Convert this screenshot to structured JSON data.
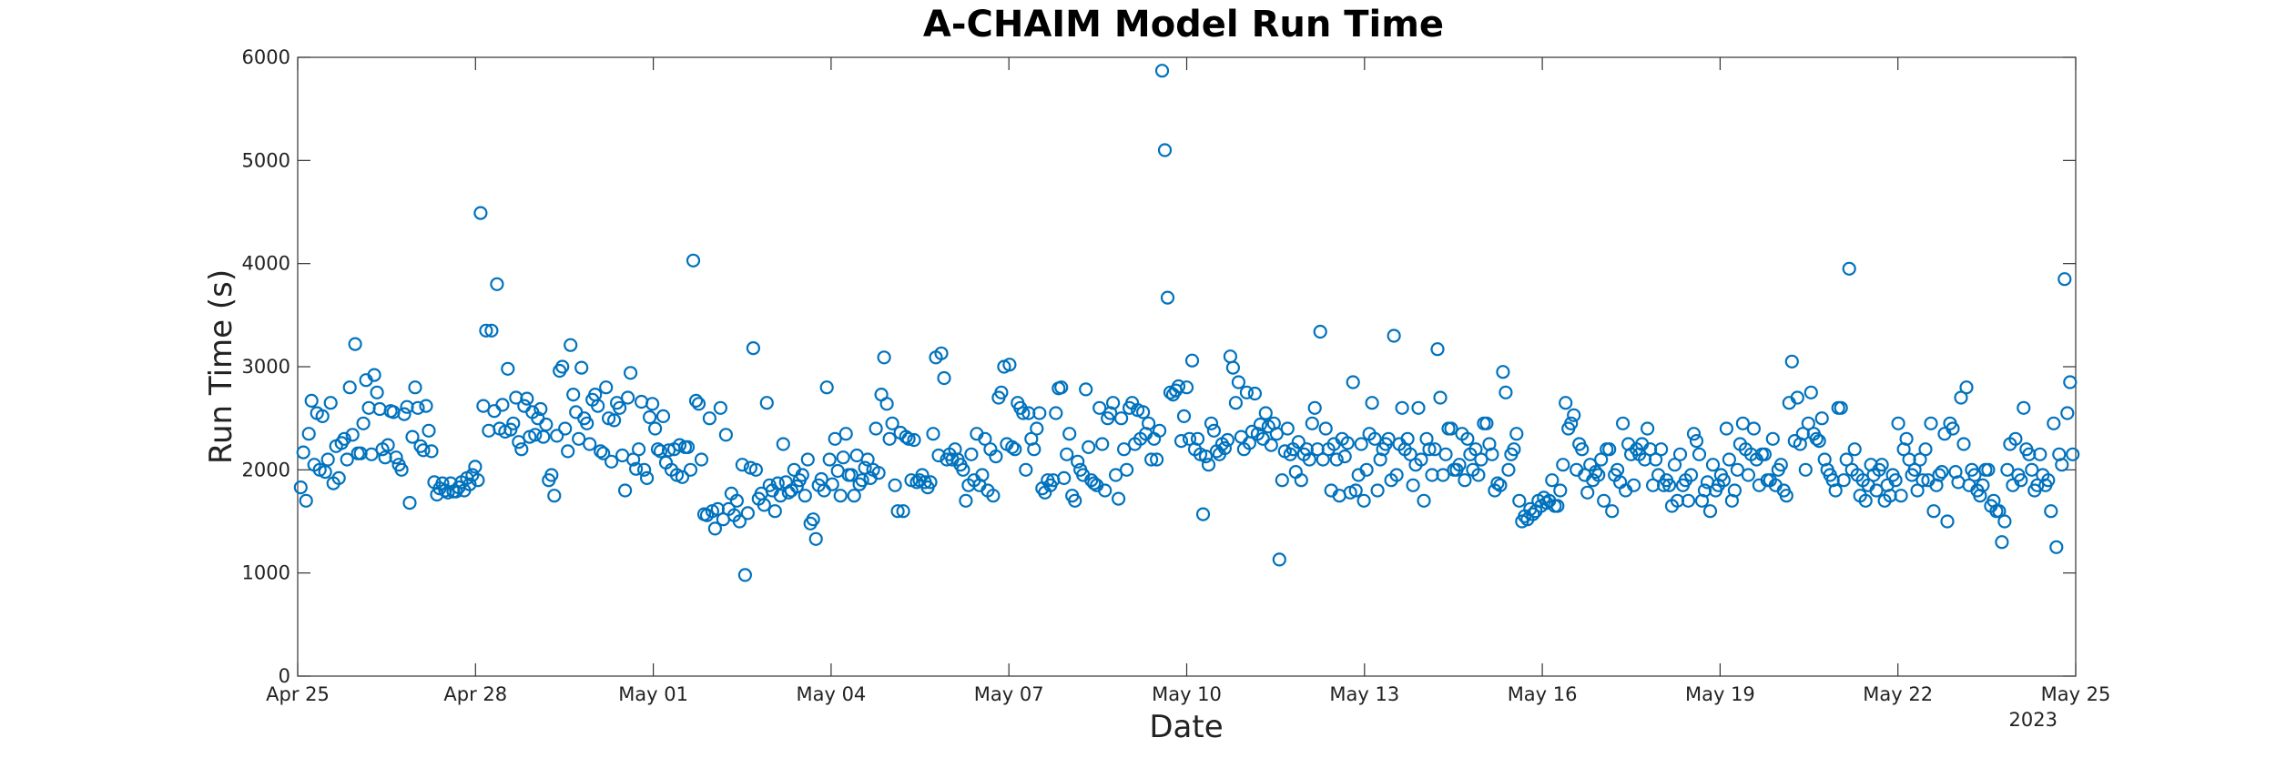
{
  "chart_data": {
    "type": "scatter",
    "title": "A-CHAIM Model Run Time",
    "xlabel": "Date",
    "ylabel": "Run Time (s)",
    "x_axis_year": "2023",
    "x_range_days": [
      0,
      30
    ],
    "x_ticks": [
      {
        "day": 0,
        "label": "Apr 25"
      },
      {
        "day": 3,
        "label": "Apr 28"
      },
      {
        "day": 6,
        "label": "May 01"
      },
      {
        "day": 9,
        "label": "May 04"
      },
      {
        "day": 12,
        "label": "May 07"
      },
      {
        "day": 15,
        "label": "May 10"
      },
      {
        "day": 18,
        "label": "May 13"
      },
      {
        "day": 21,
        "label": "May 16"
      },
      {
        "day": 24,
        "label": "May 19"
      },
      {
        "day": 27,
        "label": "May 22"
      },
      {
        "day": 30,
        "label": "May 25"
      }
    ],
    "ylim": [
      0,
      6000
    ],
    "y_ticks": [
      0,
      1000,
      2000,
      3000,
      4000,
      5000,
      6000
    ],
    "grid": false,
    "marker": "open-circle",
    "marker_color": "#0072BD",
    "series": [
      {
        "values": [
          1830,
          2170,
          1700,
          2350,
          2670,
          2050,
          2550,
          2000,
          2520,
          1980,
          2100,
          2650,
          1870,
          2230,
          1920,
          2260,
          2300,
          2100,
          2800,
          2340,
          3220,
          2160,
          2160,
          2450,
          2870,
          2600,
          2150,
          2920,
          2750,
          2590,
          2200,
          2120,
          2240,
          2570,
          2560,
          2120,
          2050,
          2000,
          2540,
          2610,
          1680,
          2320,
          2800,
          2600,
          2230,
          2190,
          2620,
          2380,
          2180,
          1880,
          1760,
          1820,
          1870,
          1800,
          1780,
          1870,
          1790,
          1790,
          1830,
          1880,
          1800,
          1920,
          1860,
          1950,
          2030,
          1900,
          4490,
          2620,
          3350,
          2380,
          3350,
          2570,
          3800,
          2400,
          2630,
          2370,
          2980,
          2390,
          2450,
          2700,
          2270,
          2200,
          2620,
          2690,
          2320,
          2560,
          2340,
          2500,
          2590,
          2320,
          2440,
          1900,
          1950,
          1750,
          2330,
          2960,
          3000,
          2400,
          2180,
          3210,
          2730,
          2560,
          2300,
          2990,
          2500,
          2450,
          2250,
          2680,
          2730,
          2620,
          2180,
          2160,
          2800,
          2500,
          2080,
          2480,
          2650,
          2600,
          2140,
          1800,
          2700,
          2940,
          2100,
          2010,
          2200,
          2660,
          2000,
          1920,
          2510,
          2640,
          2400,
          2200,
          2180,
          2520,
          2070,
          2190,
          2000,
          2200,
          1950,
          2240,
          1930,
          2220,
          2220,
          2000,
          4030,
          2670,
          2640,
          2100,
          1570,
          1560,
          2500,
          1600,
          1430,
          1620,
          2600,
          1520,
          2340,
          1620,
          1770,
          1560,
          1700,
          1500,
          2050,
          980,
          1580,
          2020,
          3180,
          2000,
          1720,
          1770,
          1660,
          2650,
          1850,
          1800,
          1600,
          1870,
          1750,
          2250,
          1880,
          1780,
          1800,
          2000,
          1840,
          1900,
          1950,
          1750,
          2100,
          1480,
          1520,
          1330,
          1850,
          1910,
          1800,
          2800,
          2100,
          1860,
          2300,
          1990,
          1750,
          2120,
          2350,
          1950,
          1950,
          1750,
          2140,
          1860,
          1900,
          2020,
          2100,
          1920,
          2000,
          2400,
          1970,
          2730,
          3090,
          2640,
          2300,
          2450,
          1850,
          1600,
          2360,
          1600,
          2320,
          2300,
          1900,
          2290,
          1880,
          1900,
          1950,
          1880,
          1830,
          1880,
          2350,
          3090,
          2140,
          3130,
          2890,
          2100,
          2150,
          2100,
          2200,
          2100,
          2050,
          2000,
          1700,
          1850,
          2150,
          1900,
          2350,
          1850,
          1950,
          2300,
          1800,
          2200,
          1750,
          2130,
          2700,
          2750,
          3000,
          2250,
          3020,
          2220,
          2200,
          2650,
          2600,
          2550,
          2000,
          2550,
          2300,
          2200,
          2400,
          2550,
          1820,
          1780,
          1900,
          1850,
          1900,
          2550,
          2790,
          2800,
          1920,
          2150,
          2350,
          1750,
          1700,
          2080,
          2000,
          1950,
          2780,
          2220,
          1900,
          1870,
          1850,
          2600,
          2250,
          1800,
          2500,
          2550,
          2650,
          1950,
          1720,
          2500,
          2200,
          2000,
          2600,
          2650,
          2250,
          2580,
          2300,
          2560,
          2350,
          2450,
          2100,
          2300,
          2100,
          2380,
          5870,
          5100,
          3670,
          2750,
          2730,
          2770,
          2810,
          2280,
          2520,
          2800,
          2300,
          3060,
          2200,
          2300,
          2150,
          1570,
          2130,
          2050,
          2450,
          2380,
          2180,
          2150,
          2250,
          2210,
          2290,
          3100,
          2990,
          2650,
          2850,
          2320,
          2200,
          2750,
          2260,
          2370,
          2740,
          2350,
          2440,
          2300,
          2550,
          2420,
          2240,
          2450,
          2350,
          1130,
          1900,
          2180,
          2400,
          2150,
          2200,
          1980,
          2270,
          1900,
          2150,
          2200,
          2100,
          2450,
          2600,
          2200,
          3340,
          2100,
          2400,
          2200,
          1800,
          2250,
          2100,
          1750,
          2300,
          2130,
          2260,
          1780,
          2850,
          1800,
          1950,
          2250,
          1700,
          2000,
          2350,
          2650,
          2300,
          1800,
          2100,
          2200,
          2250,
          2300,
          1900,
          3300,
          1950,
          2250,
          2600,
          2200,
          2300,
          2150,
          1850,
          2050,
          2600,
          2100,
          1700,
          2300,
          2200,
          1950,
          2200,
          3170,
          2700,
          1950,
          2150,
          2400,
          2400,
          2000,
          2000,
          2050,
          2350,
          1900,
          2300,
          2150,
          2000,
          2200,
          1950,
          2100,
          2450,
          2450,
          2250,
          2150,
          1800,
          1870,
          1850,
          2950,
          2750,
          2000,
          2150,
          2200,
          2350,
          1700,
          1500,
          1550,
          1520,
          1620,
          1570,
          1600,
          1700,
          1650,
          1730,
          1680,
          1700,
          1900,
          1650,
          1650,
          1800,
          2050,
          2650,
          2400,
          2450,
          2530,
          2000,
          2250,
          2200,
          1950,
          1780,
          2050,
          1900,
          1980,
          1950,
          2100,
          1700,
          2200,
          2200,
          1600,
          1950,
          2000,
          1880,
          2450,
          1800,
          2250,
          2150,
          1850,
          2200,
          2150,
          2250,
          2100,
          2400,
          2200,
          1850,
          2100,
          1950,
          2200,
          1850,
          1900,
          1850,
          1650,
          2050,
          1700,
          2150,
          1850,
          1900,
          1700,
          1950,
          2350,
          2280,
          2150,
          1700,
          1800,
          1880,
          1600,
          2050,
          1800,
          1850,
          1950,
          1900,
          2400,
          2100,
          1700,
          1800,
          2000,
          2250,
          2450,
          2200,
          1950,
          2150,
          2400,
          2100,
          1850,
          2150,
          2150,
          1900,
          1900,
          2300,
          1850,
          2000,
          2050,
          1800,
          1750,
          2650,
          3050,
          2280,
          2700,
          2250,
          2350,
          2000,
          2450,
          2750,
          2350,
          2300,
          2280,
          2500,
          2100,
          2000,
          1950,
          1900,
          1800,
          2600,
          2600,
          1900,
          2100,
          3950,
          2000,
          2200,
          1950,
          1750,
          1900,
          1700,
          1850,
          2050,
          1950,
          1800,
          2000,
          2050,
          1700,
          1850,
          1750,
          1950,
          1900,
          2450,
          1750,
          2200,
          2300,
          2100,
          1950,
          2000,
          1800,
          2100,
          1900,
          2200,
          1900,
          2450,
          1600,
          1850,
          1950,
          1980,
          2350,
          1500,
          2450,
          2400,
          1980,
          1880,
          2700,
          2250,
          2800,
          1850,
          2000,
          1950,
          1800,
          1750,
          1850,
          2000,
          2000,
          1650,
          1700,
          1600,
          1600,
          1300,
          1500,
          2000,
          2250,
          1850,
          2300,
          1950,
          1900,
          2600,
          2200,
          2150,
          2000,
          1800,
          1850,
          2150,
          1950,
          1850,
          1900,
          1600,
          2450,
          1250,
          2150,
          2050,
          3850,
          2550,
          2850,
          2150
        ]
      }
    ]
  }
}
